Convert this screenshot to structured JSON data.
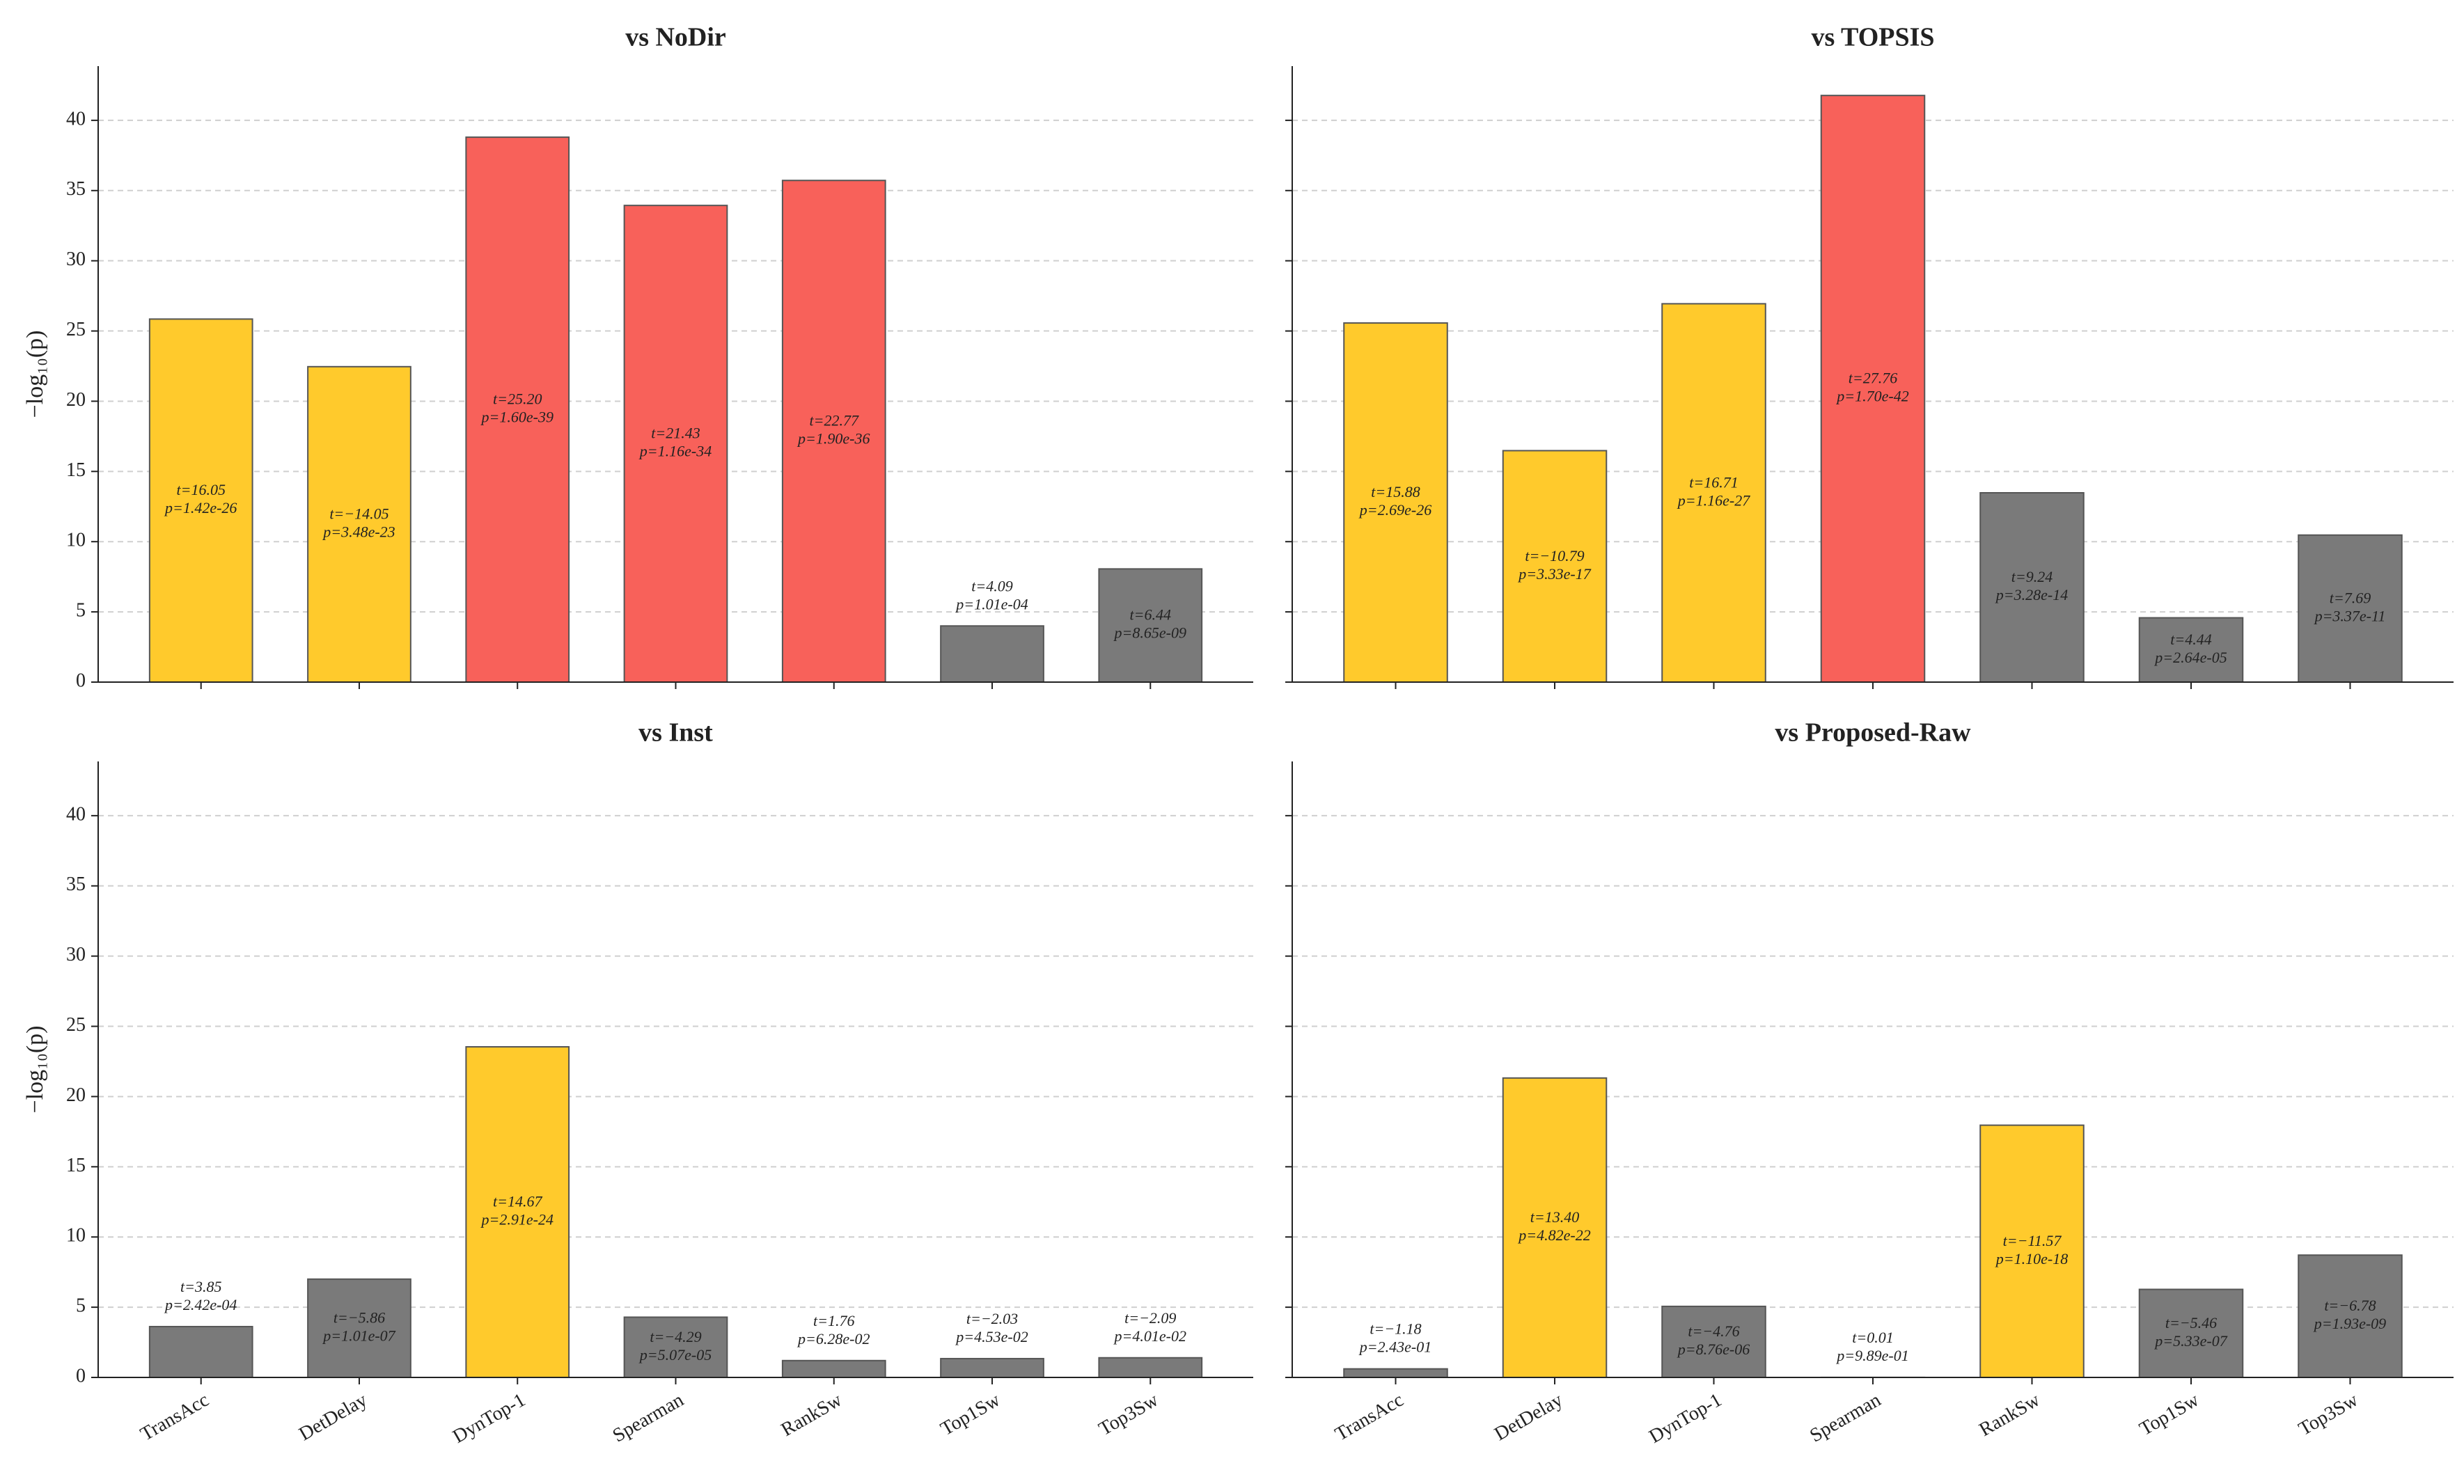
{
  "chart_data": [
    {
      "type": "bar",
      "title": "vs NoDir",
      "ylabel": "−log₁₀(p)",
      "values": [
        25.85,
        22.46,
        38.8,
        33.94,
        35.72,
        4.0,
        8.06
      ],
      "colors": [
        "#ffca2c",
        "#ffca2c",
        "#f8615a",
        "#f8615a",
        "#f8615a",
        "#7a7a7a",
        "#7a7a7a"
      ],
      "t_labels": [
        "t=16.05",
        "t=−14.05",
        "t=25.20",
        "t=21.43",
        "t=22.77",
        "t=4.09",
        "t=6.44"
      ],
      "p_labels": [
        "p=1.42e-26",
        "p=3.48e-23",
        "p=1.60e-39",
        "p=1.16e-34",
        "p=1.90e-36",
        "p=1.01e-04",
        "p=8.65e-09"
      ],
      "ylim": [
        0,
        43.86
      ],
      "yticks": [
        0,
        5,
        10,
        15,
        20,
        25,
        30,
        35,
        40
      ],
      "show_ytick_labels": true,
      "grid": true
    },
    {
      "type": "bar",
      "title": "vs TOPSIS",
      "values": [
        25.57,
        16.48,
        26.94,
        41.77,
        13.48,
        4.58,
        10.47
      ],
      "colors": [
        "#ffca2c",
        "#ffca2c",
        "#ffca2c",
        "#f8615a",
        "#7a7a7a",
        "#7a7a7a",
        "#7a7a7a"
      ],
      "t_labels": [
        "t=15.88",
        "t=−10.79",
        "t=16.71",
        "t=27.76",
        "t=9.24",
        "t=4.44",
        "t=7.69"
      ],
      "p_labels": [
        "p=2.69e-26",
        "p=3.33e-17",
        "p=1.16e-27",
        "p=1.70e-42",
        "p=3.28e-14",
        "p=2.64e-05",
        "p=3.37e-11"
      ],
      "ylim": [
        0,
        43.86
      ],
      "yticks": [
        0,
        5,
        10,
        15,
        20,
        25,
        30,
        35,
        40
      ],
      "show_ytick_labels": false,
      "grid": true
    },
    {
      "type": "bar",
      "title": "vs Inst",
      "ylabel": "−log₁₀(p)",
      "categories": [
        "TransAcc",
        "DetDelay",
        "DynTop-1",
        "Spearman",
        "RankSw",
        "Top1Sw",
        "Top3Sw"
      ],
      "values": [
        3.62,
        7.0,
        23.54,
        4.29,
        1.2,
        1.34,
        1.4
      ],
      "colors": [
        "#7a7a7a",
        "#7a7a7a",
        "#ffca2c",
        "#7a7a7a",
        "#7a7a7a",
        "#7a7a7a",
        "#7a7a7a"
      ],
      "t_labels": [
        "t=3.85",
        "t=−5.86",
        "t=14.67",
        "t=−4.29",
        "t=1.76",
        "t=−2.03",
        "t=−2.09"
      ],
      "p_labels": [
        "p=2.42e-04",
        "p=1.01e-07",
        "p=2.91e-24",
        "p=5.07e-05",
        "p=6.28e-02",
        "p=4.53e-02",
        "p=4.01e-02"
      ],
      "ylim": [
        0,
        43.86
      ],
      "yticks": [
        0,
        5,
        10,
        15,
        20,
        25,
        30,
        35,
        40
      ],
      "show_ytick_labels": true,
      "grid": true
    },
    {
      "type": "bar",
      "title": "vs Proposed-Raw",
      "categories": [
        "TransAcc",
        "DetDelay",
        "DynTop-1",
        "Spearman",
        "RankSw",
        "Top1Sw",
        "Top3Sw"
      ],
      "values": [
        0.61,
        21.32,
        5.06,
        0.005,
        17.96,
        6.27,
        8.71
      ],
      "colors": [
        "#7a7a7a",
        "#ffca2c",
        "#7a7a7a",
        "#7a7a7a",
        "#ffca2c",
        "#7a7a7a",
        "#7a7a7a"
      ],
      "t_labels": [
        "t=−1.18",
        "t=13.40",
        "t=−4.76",
        "t=0.01",
        "t=−11.57",
        "t=−5.46",
        "t=−6.78"
      ],
      "p_labels": [
        "p=2.43e-01",
        "p=4.82e-22",
        "p=8.76e-06",
        "p=9.89e-01",
        "p=1.10e-18",
        "p=5.33e-07",
        "p=1.93e-09"
      ],
      "ylim": [
        0,
        43.86
      ],
      "yticks": [
        0,
        5,
        10,
        15,
        20,
        25,
        30,
        35,
        40
      ],
      "show_ytick_labels": false,
      "grid": true
    }
  ]
}
